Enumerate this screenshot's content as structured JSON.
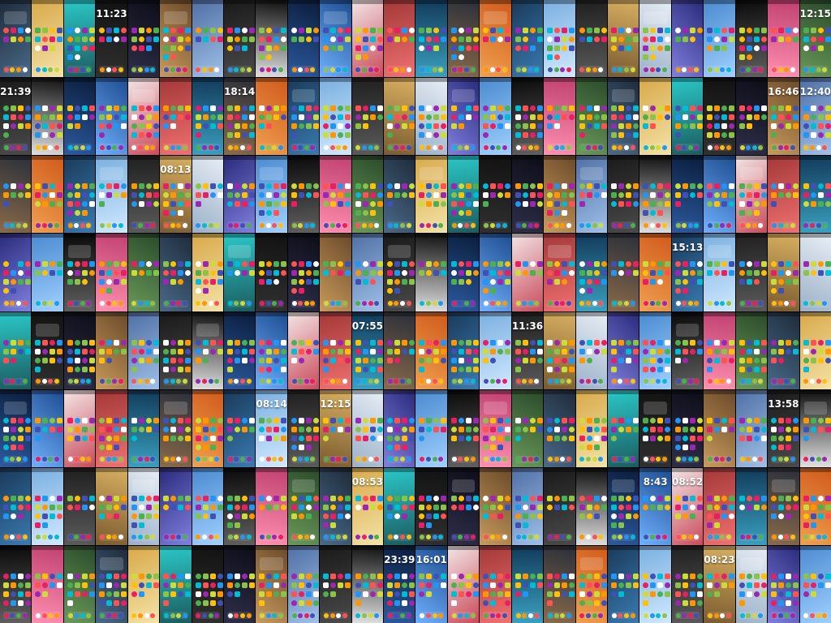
{
  "collection": {
    "columns": 26,
    "rows": 8,
    "palettes": [
      [
        "#1e2b3a",
        "#4a6a8a"
      ],
      [
        "#d8a94a",
        "#f4e2a6"
      ],
      [
        "#2bc7c7",
        "#1b5c60"
      ],
      [
        "#121212",
        "#303030"
      ],
      [
        "#0d0d18",
        "#2e2e4a"
      ],
      [
        "#6b4a2a",
        "#c89a5c"
      ],
      [
        "#4f6fa5",
        "#9fc0e8"
      ],
      [
        "#1a1a1a",
        "#4a4a4a"
      ],
      [
        "#101010",
        "#e0e0e0"
      ],
      [
        "#0a1d3b",
        "#2c5aa0"
      ],
      [
        "#1d4c8f",
        "#6fb0ff"
      ],
      [
        "#f3e6e6",
        "#c94a5a"
      ],
      [
        "#a33838",
        "#f07070"
      ],
      [
        "#123a5a",
        "#3aa0c0"
      ],
      [
        "#2a2f3a",
        "#8a6a4a"
      ],
      [
        "#d05a1a",
        "#f0a050"
      ],
      [
        "#1a3a5a",
        "#3a7ab0"
      ],
      [
        "#7ab0e0",
        "#d0e8ff"
      ],
      [
        "#202020",
        "#5a5a5a"
      ],
      [
        "#d8b060",
        "#7a5a30"
      ],
      [
        "#e8eef5",
        "#9ab0c8"
      ],
      [
        "#2a2a7a",
        "#8080e0"
      ],
      [
        "#4a8ad0",
        "#a0d0ff"
      ],
      [
        "#0a0a0a",
        "#606060"
      ],
      [
        "#c04070",
        "#ff90b0"
      ],
      [
        "#2a4a2a",
        "#6a9a5a"
      ]
    ],
    "clocks": [
      {
        "row": 0,
        "col": 3,
        "text": "11:23"
      },
      {
        "row": 0,
        "col": 25,
        "text": "12:15"
      },
      {
        "row": 1,
        "col": 0,
        "text": "21:39"
      },
      {
        "row": 1,
        "col": 7,
        "text": "18:14"
      },
      {
        "row": 1,
        "col": 24,
        "text": "16:46"
      },
      {
        "row": 1,
        "col": 25,
        "text": "12:40"
      },
      {
        "row": 2,
        "col": 5,
        "text": "08:13"
      },
      {
        "row": 3,
        "col": 21,
        "text": "15:13"
      },
      {
        "row": 4,
        "col": 11,
        "text": "07:55"
      },
      {
        "row": 4,
        "col": 16,
        "text": "11:36"
      },
      {
        "row": 5,
        "col": 8,
        "text": "08:14"
      },
      {
        "row": 5,
        "col": 10,
        "text": "12:15"
      },
      {
        "row": 5,
        "col": 24,
        "text": "13:58"
      },
      {
        "row": 6,
        "col": 11,
        "text": "08:53"
      },
      {
        "row": 6,
        "col": 20,
        "text": "8:43"
      },
      {
        "row": 6,
        "col": 21,
        "text": "08:52"
      },
      {
        "row": 7,
        "col": 12,
        "text": "23:39"
      },
      {
        "row": 7,
        "col": 13,
        "text": "16:01"
      },
      {
        "row": 7,
        "col": 22,
        "text": "08:23"
      }
    ]
  }
}
